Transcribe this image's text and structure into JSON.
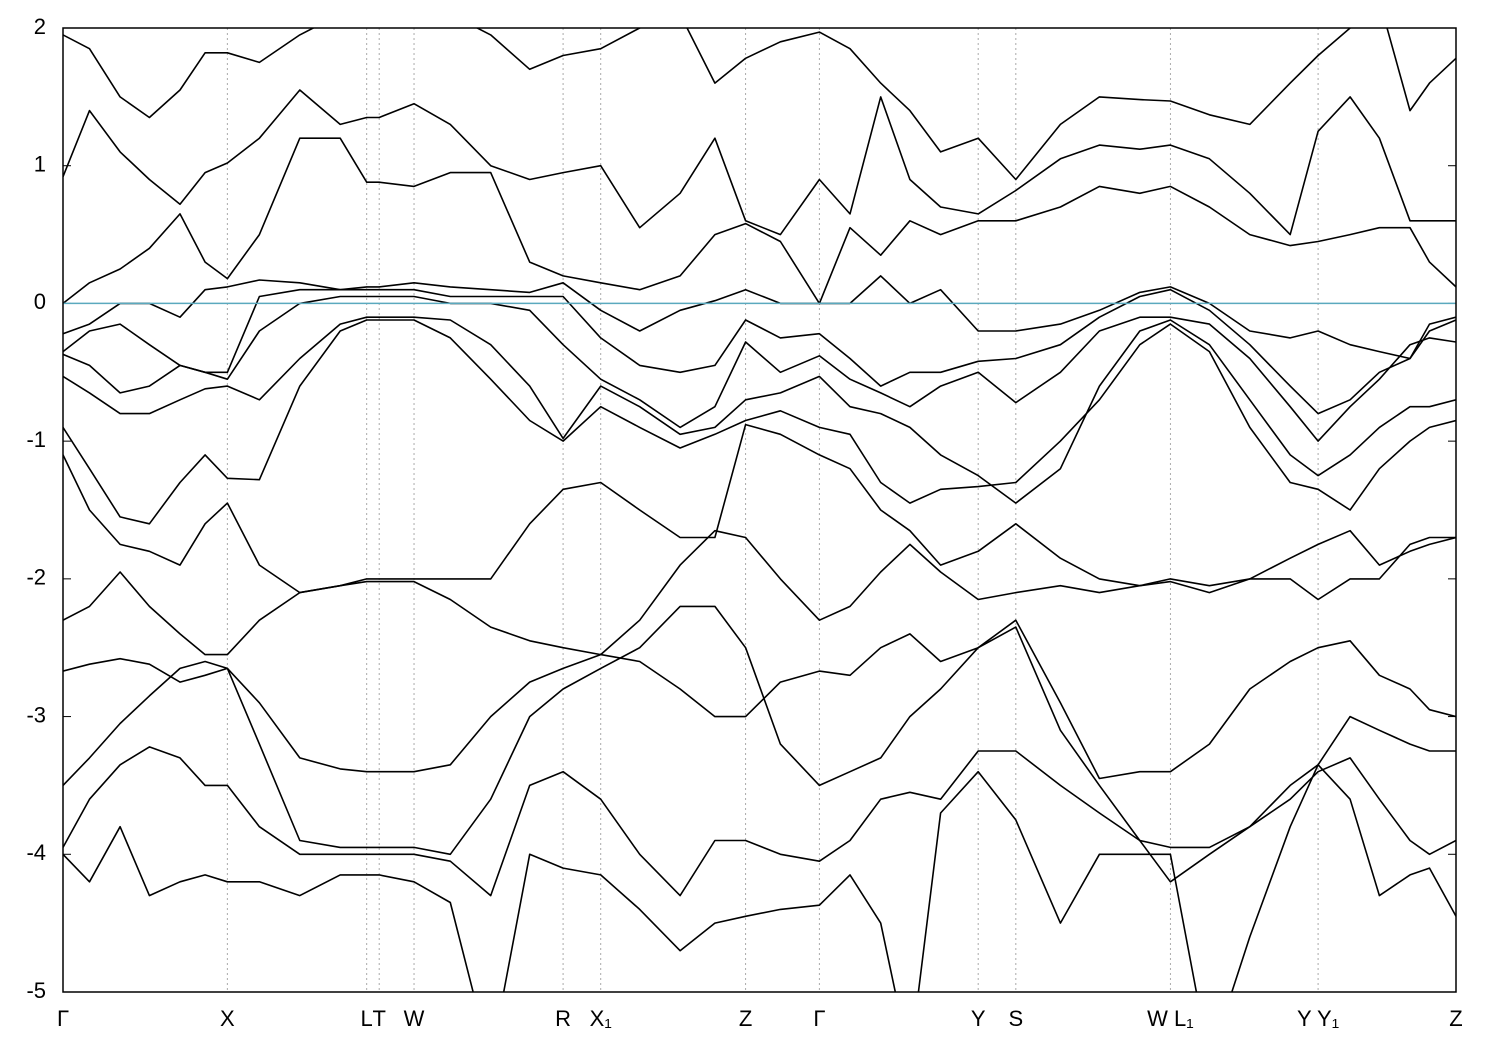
{
  "chart_data": {
    "type": "line",
    "x": [
      0,
      0.019,
      0.041,
      0.062,
      0.084,
      0.102,
      0.118,
      0.141,
      0.17,
      0.199,
      0.218,
      0.227,
      0.252,
      0.278,
      0.307,
      0.335,
      0.359,
      0.386,
      0.414,
      0.443,
      0.468,
      0.49,
      0.515,
      0.543,
      0.565,
      0.587,
      0.608,
      0.63,
      0.657,
      0.684,
      0.716,
      0.744,
      0.773,
      0.795,
      0.823,
      0.852,
      0.881,
      0.901,
      0.924,
      0.945,
      0.967,
      0.981,
      1
    ],
    "xlim": [
      0,
      1
    ],
    "xticks": [
      {
        "value": 0,
        "label": "Γ"
      },
      {
        "value": 0.118,
        "label": "X"
      },
      {
        "value": 0.218,
        "label": "L"
      },
      {
        "value": 0.227,
        "label": "T"
      },
      {
        "value": 0.252,
        "label": "W"
      },
      {
        "value": 0.359,
        "label": "R"
      },
      {
        "value": 0.386,
        "label": "X₁"
      },
      {
        "value": 0.49,
        "label": "Z"
      },
      {
        "value": 0.543,
        "label": "Γ"
      },
      {
        "value": 0.657,
        "label": "Y"
      },
      {
        "value": 0.684,
        "label": "S"
      },
      {
        "value": 0.795,
        "label": "W L₁"
      },
      {
        "value": 0.901,
        "label": "Y Y₁"
      },
      {
        "value": 1,
        "label": "Z"
      }
    ],
    "ylim": [
      -5,
      2
    ],
    "yticks": [
      -5,
      -4,
      -3,
      -2,
      -1,
      0,
      1,
      2
    ],
    "reference_line": {
      "value": 0,
      "color": "#5aa9be"
    },
    "series": [
      {
        "color": "#000000",
        "values": [
          1.95,
          1.85,
          1.5,
          1.35,
          1.55,
          1.82,
          1.82,
          1.75,
          1.95,
          2.1,
          2.2,
          2.2,
          2.2,
          2.1,
          1.95,
          1.7,
          1.8,
          1.85,
          2.0,
          2.1,
          1.6,
          1.78,
          1.9,
          1.97,
          1.85,
          1.6,
          1.4,
          1.1,
          1.2,
          0.9,
          1.3,
          1.5,
          1.48,
          1.47,
          1.37,
          1.3,
          1.6,
          1.8,
          2.0,
          2.2,
          1.4,
          1.6,
          1.78
        ]
      },
      {
        "color": "#000000",
        "values": [
          0.92,
          1.4,
          1.1,
          0.9,
          0.72,
          0.95,
          1.02,
          1.2,
          1.55,
          1.3,
          1.35,
          1.35,
          1.45,
          1.3,
          1.0,
          0.9,
          0.95,
          1.0,
          0.55,
          0.8,
          1.2,
          0.6,
          0.5,
          0.9,
          0.65,
          1.5,
          0.9,
          0.7,
          0.65,
          0.82,
          1.05,
          1.15,
          1.12,
          1.15,
          1.05,
          0.8,
          0.5,
          1.25,
          1.5,
          1.2,
          0.6,
          0.6,
          0.6
        ]
      },
      {
        "color": "#000000",
        "values": [
          0.0,
          0.15,
          0.25,
          0.4,
          0.65,
          0.3,
          0.18,
          0.5,
          1.2,
          1.2,
          0.88,
          0.88,
          0.85,
          0.95,
          0.95,
          0.3,
          0.2,
          0.15,
          0.1,
          0.2,
          0.5,
          0.58,
          0.45,
          0.0,
          0.55,
          0.35,
          0.6,
          0.5,
          0.6,
          0.6,
          0.7,
          0.85,
          0.8,
          0.85,
          0.7,
          0.5,
          0.42,
          0.45,
          0.5,
          0.55,
          0.55,
          0.3,
          0.12
        ]
      },
      {
        "color": "#000000",
        "values": [
          -0.22,
          -0.15,
          0.0,
          0.0,
          -0.1,
          0.1,
          0.12,
          0.17,
          0.15,
          0.1,
          0.12,
          0.12,
          0.15,
          0.12,
          0.1,
          0.08,
          0.15,
          -0.05,
          -0.2,
          -0.05,
          0.02,
          0.1,
          0.0,
          0.0,
          0.0,
          0.2,
          0.0,
          0.1,
          -0.2,
          -0.2,
          -0.15,
          -0.05,
          0.08,
          0.12,
          0.0,
          -0.2,
          -0.25,
          -0.2,
          -0.3,
          -0.35,
          -0.4,
          -0.15,
          -0.1
        ]
      },
      {
        "color": "#000000",
        "values": [
          -0.35,
          -0.2,
          -0.15,
          -0.3,
          -0.45,
          -0.5,
          -0.5,
          0.05,
          0.1,
          0.1,
          0.1,
          0.1,
          0.1,
          0.05,
          0.05,
          0.05,
          0.05,
          -0.25,
          -0.45,
          -0.5,
          -0.45,
          -0.12,
          -0.25,
          -0.22,
          -0.4,
          -0.6,
          -0.5,
          -0.5,
          -0.42,
          -0.4,
          -0.3,
          -0.1,
          0.05,
          0.1,
          -0.05,
          -0.3,
          -0.6,
          -0.8,
          -0.7,
          -0.5,
          -0.4,
          -0.2,
          -0.12
        ]
      },
      {
        "color": "#000000",
        "values": [
          -0.37,
          -0.45,
          -0.65,
          -0.6,
          -0.45,
          -0.5,
          -0.55,
          -0.2,
          0.0,
          0.05,
          0.05,
          0.05,
          0.05,
          0.0,
          0.0,
          -0.05,
          -0.3,
          -0.55,
          -0.7,
          -0.9,
          -0.75,
          -0.28,
          -0.5,
          -0.38,
          -0.55,
          -0.65,
          -0.75,
          -0.6,
          -0.5,
          -0.72,
          -0.5,
          -0.2,
          -0.1,
          -0.1,
          -0.15,
          -0.4,
          -0.75,
          -1.0,
          -0.75,
          -0.55,
          -0.3,
          -0.25,
          -0.28
        ]
      },
      {
        "color": "#000000",
        "values": [
          -0.53,
          -0.65,
          -0.8,
          -0.8,
          -0.7,
          -0.62,
          -0.6,
          -0.7,
          -0.4,
          -0.15,
          -0.1,
          -0.1,
          -0.1,
          -0.12,
          -0.3,
          -0.6,
          -0.98,
          -0.6,
          -0.75,
          -0.95,
          -0.9,
          -0.7,
          -0.65,
          -0.53,
          -0.75,
          -0.8,
          -0.9,
          -1.1,
          -1.25,
          -1.45,
          -1.2,
          -0.6,
          -0.2,
          -0.12,
          -0.3,
          -0.7,
          -1.1,
          -1.25,
          -1.1,
          -0.9,
          -0.75,
          -0.75,
          -0.7
        ]
      },
      {
        "color": "#000000",
        "values": [
          -0.9,
          -1.2,
          -1.55,
          -1.6,
          -1.3,
          -1.1,
          -1.27,
          -1.28,
          -0.6,
          -0.2,
          -0.12,
          -0.12,
          -0.12,
          -0.25,
          -0.55,
          -0.85,
          -1.0,
          -0.75,
          -0.9,
          -1.05,
          -0.95,
          -0.85,
          -0.78,
          -0.9,
          -0.95,
          -1.3,
          -1.45,
          -1.35,
          -1.33,
          -1.3,
          -1.0,
          -0.7,
          -0.3,
          -0.15,
          -0.35,
          -0.9,
          -1.3,
          -1.35,
          -1.5,
          -1.2,
          -1.0,
          -0.9,
          -0.85
        ]
      },
      {
        "color": "#000000",
        "values": [
          -1.1,
          -1.5,
          -1.75,
          -1.8,
          -1.9,
          -1.6,
          -1.45,
          -1.9,
          -2.1,
          -2.05,
          -2.0,
          -2.0,
          -2.0,
          -2.0,
          -2.0,
          -1.6,
          -1.35,
          -1.3,
          -1.5,
          -1.7,
          -1.7,
          -0.88,
          -0.95,
          -1.1,
          -1.2,
          -1.5,
          -1.65,
          -1.9,
          -1.8,
          -1.6,
          -1.85,
          -2.0,
          -2.05,
          -2.0,
          -2.05,
          -2.0,
          -1.85,
          -1.75,
          -1.65,
          -1.9,
          -1.8,
          -1.75,
          -1.7
        ]
      },
      {
        "color": "#000000",
        "values": [
          -2.3,
          -2.2,
          -1.95,
          -2.2,
          -2.4,
          -2.55,
          -2.55,
          -2.3,
          -2.1,
          -2.05,
          -2.02,
          -2.02,
          -2.02,
          -2.15,
          -2.35,
          -2.45,
          -2.5,
          -2.55,
          -2.3,
          -1.9,
          -1.65,
          -1.7,
          -2.0,
          -2.3,
          -2.2,
          -1.95,
          -1.75,
          -1.95,
          -2.15,
          -2.1,
          -2.05,
          -2.1,
          -2.05,
          -2.02,
          -2.1,
          -2.0,
          -2.0,
          -2.15,
          -2.0,
          -2.0,
          -1.75,
          -1.7,
          -1.7
        ]
      },
      {
        "color": "#000000",
        "values": [
          -2.67,
          -2.62,
          -2.58,
          -2.62,
          -2.75,
          -2.7,
          -2.65,
          -2.9,
          -3.3,
          -3.38,
          -3.4,
          -3.4,
          -3.4,
          -3.35,
          -3.0,
          -2.75,
          -2.65,
          -2.55,
          -2.6,
          -2.8,
          -3.0,
          -3.0,
          -2.75,
          -2.67,
          -2.7,
          -2.5,
          -2.4,
          -2.6,
          -2.5,
          -2.3,
          -2.9,
          -3.45,
          -3.4,
          -3.4,
          -3.2,
          -2.8,
          -2.6,
          -2.5,
          -2.45,
          -2.7,
          -2.8,
          -2.95,
          -3.0
        ]
      },
      {
        "color": "#000000",
        "values": [
          -3.5,
          -3.3,
          -3.05,
          -2.85,
          -2.65,
          -2.6,
          -2.65,
          -3.2,
          -3.9,
          -3.95,
          -3.95,
          -3.95,
          -3.95,
          -4.0,
          -3.6,
          -3.0,
          -2.8,
          -2.65,
          -2.5,
          -2.2,
          -2.2,
          -2.5,
          -3.2,
          -3.5,
          -3.4,
          -3.3,
          -3.0,
          -2.8,
          -2.5,
          -2.35,
          -3.1,
          -3.5,
          -3.9,
          -3.95,
          -3.95,
          -3.8,
          -3.5,
          -3.35,
          -3.0,
          -3.1,
          -3.2,
          -3.25,
          -3.25
        ]
      },
      {
        "color": "#000000",
        "values": [
          -3.95,
          -3.6,
          -3.35,
          -3.22,
          -3.3,
          -3.5,
          -3.5,
          -3.8,
          -4.0,
          -4.0,
          -4.0,
          -4.0,
          -4.0,
          -4.05,
          -4.3,
          -3.5,
          -3.4,
          -3.6,
          -4.0,
          -4.3,
          -3.9,
          -3.9,
          -4.0,
          -4.05,
          -3.9,
          -3.6,
          -3.55,
          -3.6,
          -3.25,
          -3.25,
          -3.5,
          -3.7,
          -3.9,
          -4.2,
          -4.0,
          -3.8,
          -3.6,
          -3.4,
          -3.3,
          -3.6,
          -3.9,
          -4.0,
          -3.9
        ]
      },
      {
        "color": "#000000",
        "values": [
          -4.0,
          -4.2,
          -3.8,
          -4.3,
          -4.2,
          -4.15,
          -4.2,
          -4.2,
          -4.3,
          -4.15,
          -4.15,
          -4.15,
          -4.2,
          -4.35,
          -5.5,
          -4.0,
          -4.1,
          -4.15,
          -4.4,
          -4.7,
          -4.5,
          -4.45,
          -4.4,
          -4.37,
          -4.15,
          -4.5,
          -5.5,
          -3.7,
          -3.4,
          -3.75,
          -4.5,
          -4.0,
          -4.0,
          -4.0,
          -5.5,
          -4.6,
          -3.8,
          -3.35,
          -3.6,
          -4.3,
          -4.15,
          -4.1,
          -4.45
        ]
      }
    ]
  }
}
